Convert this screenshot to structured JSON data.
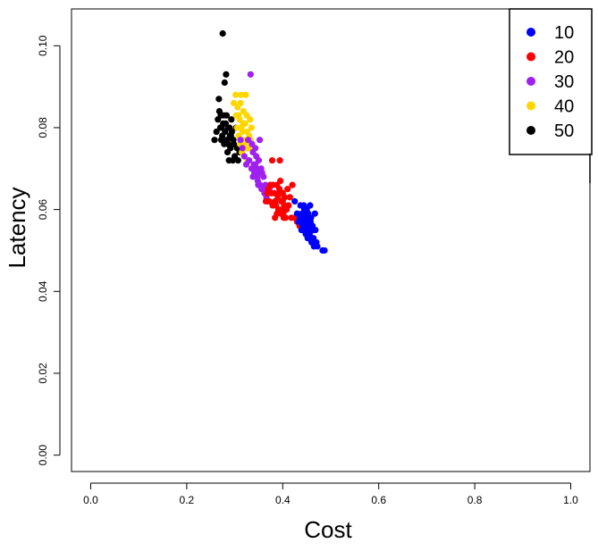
{
  "chart_data": {
    "type": "scatter",
    "xlabel": "Cost",
    "ylabel": "Latency",
    "xlim": [
      -0.04,
      1.04
    ],
    "ylim": [
      -0.004,
      0.109
    ],
    "x_ticks": [
      "0.0",
      "0.2",
      "0.4",
      "0.6",
      "0.8",
      "1.0"
    ],
    "x_tick_values": [
      0.0,
      0.2,
      0.4,
      0.6,
      0.8,
      1.0
    ],
    "y_ticks": [
      "0.00",
      "0.02",
      "0.04",
      "0.06",
      "0.08",
      "0.10"
    ],
    "y_tick_values": [
      0.0,
      0.02,
      0.04,
      0.06,
      0.08,
      0.1
    ],
    "grid": false,
    "legend_position": "top-right",
    "series": [
      {
        "name": "10",
        "color": "#0000ff",
        "points": [
          [
            0.425,
            0.062
          ],
          [
            0.43,
            0.059
          ],
          [
            0.433,
            0.057
          ],
          [
            0.437,
            0.061
          ],
          [
            0.44,
            0.059
          ],
          [
            0.44,
            0.057
          ],
          [
            0.442,
            0.055
          ],
          [
            0.444,
            0.061
          ],
          [
            0.446,
            0.058
          ],
          [
            0.447,
            0.056
          ],
          [
            0.448,
            0.054
          ],
          [
            0.45,
            0.06
          ],
          [
            0.45,
            0.057
          ],
          [
            0.452,
            0.055
          ],
          [
            0.452,
            0.053
          ],
          [
            0.454,
            0.058
          ],
          [
            0.455,
            0.056
          ],
          [
            0.456,
            0.054
          ],
          [
            0.457,
            0.061
          ],
          [
            0.458,
            0.057
          ],
          [
            0.46,
            0.055
          ],
          [
            0.46,
            0.052
          ],
          [
            0.462,
            0.056
          ],
          [
            0.464,
            0.053
          ],
          [
            0.465,
            0.051
          ],
          [
            0.467,
            0.059
          ],
          [
            0.468,
            0.055
          ],
          [
            0.47,
            0.052
          ],
          [
            0.472,
            0.051
          ],
          [
            0.483,
            0.05
          ],
          [
            0.487,
            0.05
          ],
          [
            0.445,
            0.06
          ],
          [
            0.449,
            0.059
          ],
          [
            0.459,
            0.058
          ],
          [
            0.441,
            0.056
          ],
          [
            0.436,
            0.058
          ],
          [
            0.453,
            0.059
          ],
          [
            0.458,
            0.053
          ],
          [
            0.463,
            0.055
          ],
          [
            0.439,
            0.055
          ]
        ]
      },
      {
        "name": "20",
        "color": "#ff0000",
        "points": [
          [
            0.365,
            0.062
          ],
          [
            0.368,
            0.064
          ],
          [
            0.37,
            0.065
          ],
          [
            0.372,
            0.062
          ],
          [
            0.374,
            0.066
          ],
          [
            0.376,
            0.064
          ],
          [
            0.378,
            0.072
          ],
          [
            0.38,
            0.066
          ],
          [
            0.382,
            0.064
          ],
          [
            0.384,
            0.062
          ],
          [
            0.386,
            0.061
          ],
          [
            0.388,
            0.066
          ],
          [
            0.39,
            0.063
          ],
          [
            0.391,
            0.06
          ],
          [
            0.393,
            0.065
          ],
          [
            0.394,
            0.072
          ],
          [
            0.395,
            0.067
          ],
          [
            0.397,
            0.062
          ],
          [
            0.398,
            0.06
          ],
          [
            0.4,
            0.064
          ],
          [
            0.401,
            0.059
          ],
          [
            0.403,
            0.061
          ],
          [
            0.404,
            0.063
          ],
          [
            0.406,
            0.058
          ],
          [
            0.408,
            0.06
          ],
          [
            0.41,
            0.065
          ],
          [
            0.412,
            0.061
          ],
          [
            0.415,
            0.063
          ],
          [
            0.418,
            0.058
          ],
          [
            0.42,
            0.066
          ],
          [
            0.425,
            0.058
          ],
          [
            0.43,
            0.057
          ],
          [
            0.435,
            0.056
          ],
          [
            0.384,
            0.058
          ],
          [
            0.388,
            0.059
          ],
          [
            0.396,
            0.059
          ],
          [
            0.402,
            0.058
          ],
          [
            0.379,
            0.061
          ],
          [
            0.392,
            0.064
          ],
          [
            0.4,
            0.062
          ]
        ]
      },
      {
        "name": "30",
        "color": "#a020f0",
        "points": [
          [
            0.312,
            0.077
          ],
          [
            0.316,
            0.075
          ],
          [
            0.32,
            0.073
          ],
          [
            0.324,
            0.071
          ],
          [
            0.328,
            0.077
          ],
          [
            0.33,
            0.072
          ],
          [
            0.333,
            0.093
          ],
          [
            0.336,
            0.076
          ],
          [
            0.338,
            0.074
          ],
          [
            0.34,
            0.071
          ],
          [
            0.341,
            0.069
          ],
          [
            0.343,
            0.075
          ],
          [
            0.345,
            0.073
          ],
          [
            0.347,
            0.068
          ],
          [
            0.348,
            0.067
          ],
          [
            0.35,
            0.072
          ],
          [
            0.352,
            0.077
          ],
          [
            0.353,
            0.066
          ],
          [
            0.355,
            0.07
          ],
          [
            0.357,
            0.069
          ],
          [
            0.358,
            0.065
          ],
          [
            0.36,
            0.068
          ],
          [
            0.362,
            0.064
          ],
          [
            0.364,
            0.066
          ],
          [
            0.366,
            0.063
          ],
          [
            0.368,
            0.062
          ],
          [
            0.372,
            0.065
          ],
          [
            0.338,
            0.068
          ],
          [
            0.346,
            0.07
          ],
          [
            0.335,
            0.07
          ],
          [
            0.349,
            0.066
          ],
          [
            0.356,
            0.065
          ],
          [
            0.343,
            0.071
          ],
          [
            0.351,
            0.069
          ]
        ]
      },
      {
        "name": "40",
        "color": "#ffd700",
        "points": [
          [
            0.298,
            0.086
          ],
          [
            0.302,
            0.088
          ],
          [
            0.303,
            0.083
          ],
          [
            0.305,
            0.08
          ],
          [
            0.306,
            0.085
          ],
          [
            0.308,
            0.078
          ],
          [
            0.31,
            0.082
          ],
          [
            0.311,
            0.076
          ],
          [
            0.313,
            0.088
          ],
          [
            0.314,
            0.08
          ],
          [
            0.315,
            0.074
          ],
          [
            0.316,
            0.079
          ],
          [
            0.318,
            0.084
          ],
          [
            0.319,
            0.077
          ],
          [
            0.32,
            0.073
          ],
          [
            0.322,
            0.081
          ],
          [
            0.323,
            0.088
          ],
          [
            0.324,
            0.075
          ],
          [
            0.326,
            0.079
          ],
          [
            0.327,
            0.072
          ],
          [
            0.33,
            0.078
          ],
          [
            0.332,
            0.082
          ],
          [
            0.335,
            0.08
          ],
          [
            0.308,
            0.083
          ],
          [
            0.312,
            0.086
          ],
          [
            0.317,
            0.081
          ],
          [
            0.321,
            0.076
          ],
          [
            0.325,
            0.083
          ],
          [
            0.329,
            0.075
          ],
          [
            0.333,
            0.077
          ]
        ]
      },
      {
        "name": "50",
        "color": "#000000",
        "points": [
          [
            0.258,
            0.077
          ],
          [
            0.262,
            0.079
          ],
          [
            0.265,
            0.082
          ],
          [
            0.267,
            0.087
          ],
          [
            0.268,
            0.084
          ],
          [
            0.27,
            0.08
          ],
          [
            0.272,
            0.077
          ],
          [
            0.274,
            0.078
          ],
          [
            0.275,
            0.103
          ],
          [
            0.276,
            0.081
          ],
          [
            0.278,
            0.076
          ],
          [
            0.279,
            0.091
          ],
          [
            0.28,
            0.079
          ],
          [
            0.282,
            0.093
          ],
          [
            0.283,
            0.083
          ],
          [
            0.284,
            0.077
          ],
          [
            0.285,
            0.074
          ],
          [
            0.287,
            0.08
          ],
          [
            0.288,
            0.072
          ],
          [
            0.29,
            0.078
          ],
          [
            0.291,
            0.075
          ],
          [
            0.293,
            0.082
          ],
          [
            0.294,
            0.079
          ],
          [
            0.296,
            0.072
          ],
          [
            0.298,
            0.076
          ],
          [
            0.3,
            0.073
          ],
          [
            0.303,
            0.08
          ],
          [
            0.305,
            0.075
          ],
          [
            0.307,
            0.072
          ],
          [
            0.31,
            0.074
          ],
          [
            0.277,
            0.083
          ],
          [
            0.281,
            0.081
          ],
          [
            0.286,
            0.076
          ],
          [
            0.289,
            0.08
          ],
          [
            0.292,
            0.078
          ],
          [
            0.297,
            0.077
          ],
          [
            0.271,
            0.083
          ],
          [
            0.273,
            0.08
          ]
        ]
      }
    ]
  }
}
